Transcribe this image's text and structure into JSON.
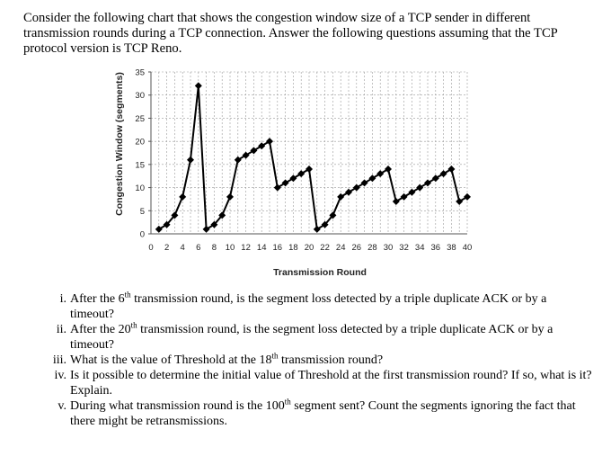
{
  "intro": "Consider the following chart that shows the congestion window size of a TCP sender in different transmission rounds during a TCP connection. Answer the following questions assuming that the TCP protocol version is TCP Reno.",
  "chart_data": {
    "type": "line",
    "title": "",
    "xlabel": "Transmission Round",
    "ylabel": "Congestion Window (segments)",
    "xlim": [
      0,
      40
    ],
    "ylim": [
      0,
      35
    ],
    "xticks": [
      0,
      2,
      4,
      6,
      8,
      10,
      12,
      14,
      16,
      18,
      20,
      22,
      24,
      26,
      28,
      30,
      32,
      34,
      36,
      38,
      40
    ],
    "yticks": [
      0,
      5,
      10,
      15,
      20,
      25,
      30,
      35
    ],
    "grid": true,
    "series": [
      {
        "name": "",
        "x": [
          1,
          2,
          3,
          4,
          5,
          6,
          7,
          8,
          9,
          10,
          11,
          12,
          13,
          14,
          15,
          16,
          17,
          18,
          19,
          20,
          21,
          22,
          23,
          24,
          25,
          26,
          27,
          28,
          29,
          30,
          31,
          32,
          33,
          34,
          35,
          36,
          37,
          38,
          39,
          40
        ],
        "y": [
          1,
          2,
          4,
          8,
          16,
          32,
          1,
          2,
          4,
          8,
          16,
          17,
          18,
          19,
          20,
          10,
          11,
          12,
          13,
          14,
          1,
          2,
          4,
          8,
          9,
          10,
          11,
          12,
          13,
          14,
          7,
          8,
          9,
          10,
          11,
          12,
          13,
          14,
          7,
          8
        ]
      }
    ]
  },
  "questions": [
    {
      "num": "i.",
      "pre": "After the 6",
      "sup": "th",
      "post": " transmission round, is the segment loss detected by a triple duplicate ACK or by a timeout?"
    },
    {
      "num": "ii.",
      "pre": "After the 20",
      "sup": "th",
      "post": " transmission round, is the segment loss detected by a triple duplicate ACK or by a timeout?"
    },
    {
      "num": "iii.",
      "pre": "What is the value of Threshold at the 18",
      "sup": "th",
      "post": " transmission round?"
    },
    {
      "num": "iv.",
      "pre": "Is it possible to determine the initial value of Threshold at the first transmission round? If so, what is it? Explain.",
      "sup": "",
      "post": ""
    },
    {
      "num": "v.",
      "pre": "During what transmission round is the 100",
      "sup": "th",
      "post": " segment sent? Count the segments ignoring the fact that there might be retransmissions."
    }
  ]
}
